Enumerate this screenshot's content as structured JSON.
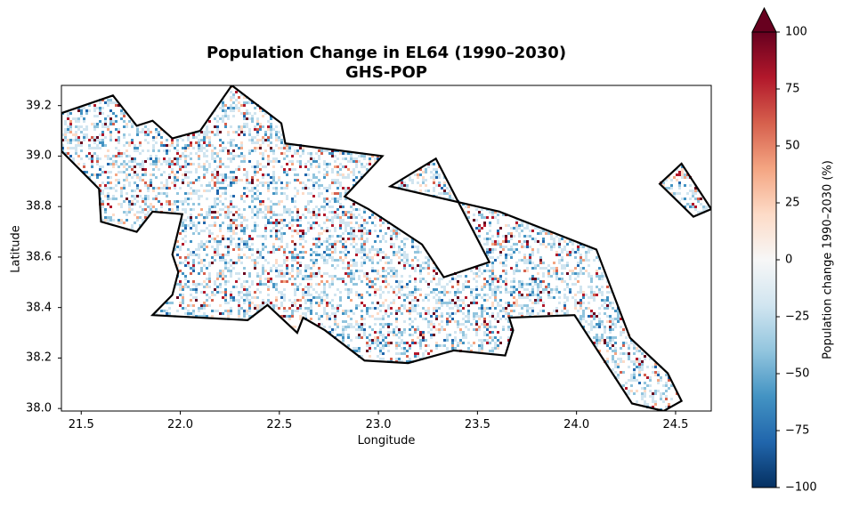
{
  "title": "Population Change in EL64 (1990–2030)",
  "subtitle": "GHS-POP",
  "chart_data": {
    "type": "heatmap",
    "xlabel": "Longitude",
    "ylabel": "Latitude",
    "xlim": [
      21.4,
      24.68
    ],
    "ylim": [
      37.99,
      39.28
    ],
    "xticks": [
      "21.5",
      "22.0",
      "22.5",
      "23.0",
      "23.5",
      "24.0",
      "24.5"
    ],
    "yticks": [
      "38.0",
      "38.2",
      "38.4",
      "38.6",
      "38.8",
      "39.0",
      "39.2"
    ],
    "colorbar": {
      "label": "Population change 1990–2030 (%)",
      "range": [
        -100,
        100
      ],
      "ticks": [
        "100",
        "75",
        "50",
        "25",
        "0",
        "−25",
        "−50",
        "−75",
        "−100"
      ],
      "extend": "max",
      "colormap": "RdBu_r",
      "colors": [
        "#053061",
        "#2166ac",
        "#4393c3",
        "#92c5de",
        "#d1e5f0",
        "#f7f7f7",
        "#fddbc7",
        "#f4a582",
        "#d6604d",
        "#b2182b",
        "#67001f"
      ]
    },
    "region_outlines": [
      {
        "points": [
          [
            21.4,
            39.17
          ],
          [
            21.66,
            39.24
          ],
          [
            21.78,
            39.12
          ],
          [
            21.86,
            39.14
          ],
          [
            21.96,
            39.07
          ],
          [
            22.1,
            39.1
          ],
          [
            22.26,
            39.28
          ],
          [
            22.51,
            39.13
          ],
          [
            22.53,
            39.05
          ],
          [
            23.02,
            39.0
          ],
          [
            22.83,
            38.84
          ],
          [
            22.95,
            38.79
          ],
          [
            23.22,
            38.65
          ],
          [
            23.33,
            38.52
          ],
          [
            23.56,
            38.58
          ],
          [
            23.29,
            38.99
          ],
          [
            23.06,
            38.88
          ],
          [
            23.61,
            38.78
          ],
          [
            24.1,
            38.63
          ],
          [
            24.27,
            38.28
          ],
          [
            24.46,
            38.14
          ],
          [
            24.53,
            38.03
          ],
          [
            24.44,
            37.99
          ],
          [
            24.28,
            38.02
          ],
          [
            23.99,
            38.37
          ],
          [
            23.66,
            38.36
          ],
          [
            23.68,
            38.31
          ],
          [
            23.64,
            38.21
          ],
          [
            23.38,
            38.23
          ],
          [
            23.15,
            38.18
          ],
          [
            22.93,
            38.19
          ],
          [
            22.73,
            38.31
          ],
          [
            22.62,
            38.36
          ],
          [
            22.59,
            38.3
          ],
          [
            22.44,
            38.41
          ],
          [
            22.34,
            38.35
          ],
          [
            21.86,
            38.37
          ],
          [
            21.96,
            38.45
          ],
          [
            21.99,
            38.54
          ],
          [
            21.96,
            38.61
          ],
          [
            22.01,
            38.77
          ],
          [
            21.86,
            38.78
          ],
          [
            21.78,
            38.7
          ],
          [
            21.6,
            38.74
          ],
          [
            21.59,
            38.87
          ],
          [
            21.4,
            39.02
          ]
        ]
      },
      {
        "points": [
          [
            24.42,
            38.89
          ],
          [
            24.53,
            38.97
          ],
          [
            24.68,
            38.79
          ],
          [
            24.59,
            38.76
          ]
        ]
      }
    ]
  }
}
